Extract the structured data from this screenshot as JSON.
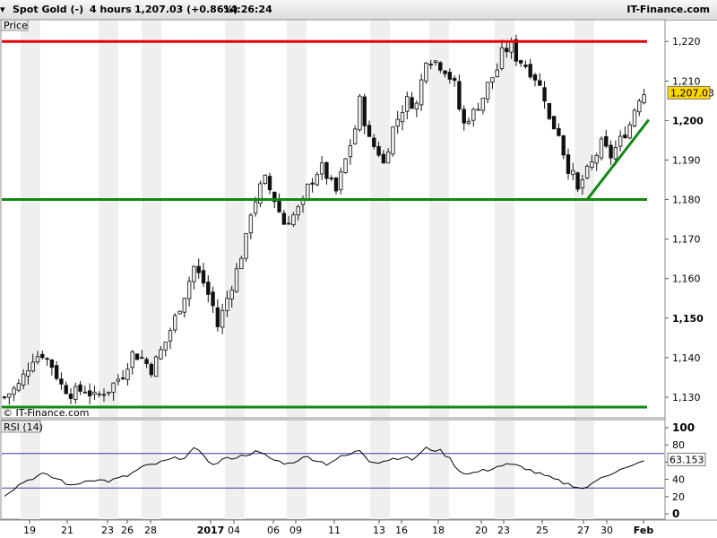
{
  "header": {
    "instrument": "Spot Gold (-)",
    "timeframe": "4 hours",
    "last_quote": "1,207.03 (+0.86%)",
    "time": "14:26:24",
    "brand": "IT-Finance.com"
  },
  "price_panel": {
    "label": "Price",
    "watermark": "© IT-Finance.com",
    "current_price": 1207.03,
    "current_price_label": "1,207.03",
    "ticks": [
      {
        "value": 1220,
        "label": "1,220",
        "bold": false
      },
      {
        "value": 1210,
        "label": "1,210",
        "bold": false
      },
      {
        "value": 1200,
        "label": "1,200",
        "bold": true
      },
      {
        "value": 1190,
        "label": "1,190",
        "bold": false
      },
      {
        "value": 1180,
        "label": "1,180",
        "bold": false
      },
      {
        "value": 1170,
        "label": "1,170",
        "bold": false
      },
      {
        "value": 1160,
        "label": "1,160",
        "bold": false
      },
      {
        "value": 1150,
        "label": "1,150",
        "bold": true
      },
      {
        "value": 1140,
        "label": "1,140",
        "bold": false
      },
      {
        "value": 1130,
        "label": "1,130",
        "bold": false
      }
    ]
  },
  "rsi_panel": {
    "label": "RSI (14)",
    "current_value_label": "63.153",
    "ticks": [
      {
        "value": 100,
        "label": "100",
        "bold": true
      },
      {
        "value": 80,
        "label": "80",
        "bold": false
      },
      {
        "value": 60,
        "label": "60",
        "bold": false
      },
      {
        "value": 40,
        "label": "40",
        "bold": false
      },
      {
        "value": 20,
        "label": "20",
        "bold": false
      },
      {
        "value": 0,
        "label": "0",
        "bold": true
      }
    ]
  },
  "colors": {
    "resistance": "#e8000b",
    "support": "#118811",
    "candle_up": "#f2f2f2",
    "candle_down": "#111111",
    "rsi_line": "#000000",
    "rsi_band": "#3a3aa0",
    "current_price_badge": "#ffd700"
  },
  "chart_data": {
    "type": "candlestick",
    "x_tick_labels": [
      {
        "label": "19",
        "bold": false
      },
      {
        "label": "21",
        "bold": false
      },
      {
        "label": "23",
        "bold": false
      },
      {
        "label": "26",
        "bold": false
      },
      {
        "label": "28",
        "bold": false
      },
      {
        "label": "2017",
        "bold": true
      },
      {
        "label": "04",
        "bold": false
      },
      {
        "label": "06",
        "bold": false
      },
      {
        "label": "09",
        "bold": false
      },
      {
        "label": "11",
        "bold": false
      },
      {
        "label": "13",
        "bold": false
      },
      {
        "label": "16",
        "bold": false
      },
      {
        "label": "18",
        "bold": false
      },
      {
        "label": "20",
        "bold": false
      },
      {
        "label": "23",
        "bold": false
      },
      {
        "label": "25",
        "bold": false
      },
      {
        "label": "27",
        "bold": false
      },
      {
        "label": "30",
        "bold": false
      },
      {
        "label": "Feb",
        "bold": true
      }
    ],
    "ylim": [
      1125,
      1223
    ],
    "rsi_ylim": [
      0,
      100
    ],
    "close_path": [
      [
        0,
        1130
      ],
      [
        3,
        1133
      ],
      [
        6,
        1140
      ],
      [
        8,
        1141
      ],
      [
        10,
        1138
      ],
      [
        12,
        1133
      ],
      [
        14,
        1131
      ],
      [
        17,
        1132
      ],
      [
        19,
        1130
      ],
      [
        22,
        1132
      ],
      [
        25,
        1136
      ],
      [
        27,
        1141
      ],
      [
        29,
        1140
      ],
      [
        31,
        1137
      ],
      [
        34,
        1144
      ],
      [
        36,
        1150
      ],
      [
        38,
        1156
      ],
      [
        40,
        1163
      ],
      [
        42,
        1159
      ],
      [
        44,
        1153
      ],
      [
        45,
        1148
      ],
      [
        47,
        1155
      ],
      [
        49,
        1162
      ],
      [
        51,
        1170
      ],
      [
        52,
        1177
      ],
      [
        54,
        1183
      ],
      [
        55,
        1185
      ],
      [
        57,
        1180
      ],
      [
        59,
        1174
      ],
      [
        61,
        1176
      ],
      [
        63,
        1179
      ],
      [
        64,
        1183
      ],
      [
        66,
        1187
      ],
      [
        67,
        1188
      ],
      [
        68,
        1186
      ],
      [
        70,
        1182
      ],
      [
        72,
        1190
      ],
      [
        74,
        1198
      ],
      [
        75,
        1205
      ],
      [
        77,
        1195
      ],
      [
        79,
        1192
      ],
      [
        80,
        1189
      ],
      [
        82,
        1198
      ],
      [
        84,
        1203
      ],
      [
        85,
        1205
      ],
      [
        87,
        1204
      ],
      [
        88,
        1210
      ],
      [
        89,
        1216
      ],
      [
        91,
        1215
      ],
      [
        93,
        1213
      ],
      [
        95,
        1209
      ],
      [
        96,
        1203
      ],
      [
        97,
        1199
      ],
      [
        98,
        1201
      ],
      [
        99,
        1202
      ],
      [
        101,
        1206
      ],
      [
        102,
        1209
      ],
      [
        104,
        1213
      ],
      [
        105,
        1217
      ],
      [
        107,
        1219
      ],
      [
        108,
        1216
      ],
      [
        110,
        1214
      ],
      [
        112,
        1211
      ],
      [
        114,
        1206
      ],
      [
        115,
        1200
      ],
      [
        117,
        1197
      ],
      [
        118,
        1192
      ],
      [
        119,
        1188
      ],
      [
        120,
        1186
      ],
      [
        121,
        1182
      ],
      [
        122,
        1185
      ],
      [
        124,
        1189
      ],
      [
        126,
        1194
      ],
      [
        128,
        1191
      ],
      [
        130,
        1195
      ],
      [
        132,
        1199
      ],
      [
        133,
        1203
      ],
      [
        134,
        1206
      ],
      [
        135,
        1207
      ]
    ],
    "rsi_path": [
      [
        0,
        22
      ],
      [
        4,
        37
      ],
      [
        8,
        46
      ],
      [
        12,
        39
      ],
      [
        14,
        32
      ],
      [
        18,
        40
      ],
      [
        22,
        38
      ],
      [
        26,
        44
      ],
      [
        29,
        54
      ],
      [
        32,
        58
      ],
      [
        35,
        63
      ],
      [
        38,
        66
      ],
      [
        40,
        75
      ],
      [
        42,
        69
      ],
      [
        44,
        56
      ],
      [
        46,
        63
      ],
      [
        50,
        67
      ],
      [
        53,
        72
      ],
      [
        55,
        68
      ],
      [
        57,
        62
      ],
      [
        60,
        58
      ],
      [
        62,
        63
      ],
      [
        64,
        66
      ],
      [
        66,
        62
      ],
      [
        68,
        58
      ],
      [
        71,
        66
      ],
      [
        73,
        69
      ],
      [
        75,
        74
      ],
      [
        77,
        62
      ],
      [
        79,
        60
      ],
      [
        82,
        64
      ],
      [
        84,
        66
      ],
      [
        86,
        63
      ],
      [
        88,
        71
      ],
      [
        89,
        76
      ],
      [
        92,
        73
      ],
      [
        94,
        64
      ],
      [
        96,
        50
      ],
      [
        98,
        46
      ],
      [
        100,
        49
      ],
      [
        102,
        51
      ],
      [
        104,
        55
      ],
      [
        106,
        57
      ],
      [
        108,
        56
      ],
      [
        110,
        53
      ],
      [
        112,
        48
      ],
      [
        114,
        44
      ],
      [
        116,
        40
      ],
      [
        118,
        36
      ],
      [
        120,
        33
      ],
      [
        122,
        29
      ],
      [
        124,
        34
      ],
      [
        126,
        43
      ],
      [
        128,
        47
      ],
      [
        130,
        51
      ],
      [
        132,
        54
      ],
      [
        134,
        59
      ],
      [
        135,
        63
      ]
    ],
    "horizontal_lines": [
      {
        "value": 1220,
        "role": "resistance"
      },
      {
        "value": 1180,
        "role": "support"
      },
      {
        "value": 1127.5,
        "role": "support"
      }
    ],
    "rsi_bands": [
      70,
      30
    ],
    "trendline": {
      "from": [
        123,
        1180
      ],
      "to": [
        136,
        1200.2
      ]
    }
  }
}
